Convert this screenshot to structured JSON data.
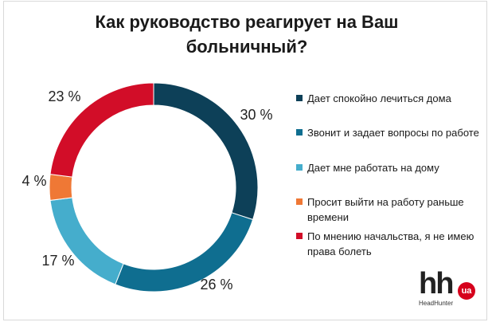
{
  "title": "Как руководство реагирует на Ваш больничный?",
  "logo": {
    "mark": "hh",
    "badge": "ua",
    "caption": "HeadHunter"
  },
  "chart_data": {
    "type": "pie",
    "variant": "donut",
    "title": "Как руководство реагирует на Ваш больничный?",
    "categories": [
      "Дает спокойно лечиться дома",
      "Звонит и задает вопросы по работе",
      "Дает мне работать на дому",
      "Просит выйти на работу раньше времени",
      "По мнению начальства, я не имею права болеть"
    ],
    "values": [
      30,
      26,
      17,
      4,
      23
    ],
    "value_labels": [
      "30 %",
      "26 %",
      "17 %",
      "4 %",
      "23 %"
    ],
    "colors": [
      "#0d4058",
      "#0f6e90",
      "#45adcc",
      "#ef7835",
      "#d20d28"
    ],
    "legend_lines": [
      [
        "Дает спокойно лечиться дома"
      ],
      [
        "Звонит и задает вопросы по работе"
      ],
      [
        "Дает мне работать на дому"
      ],
      [
        "Просит выйти на работу раньше",
        "времени"
      ],
      [
        "По мнению начальства, я не имею",
        "права болеть"
      ]
    ],
    "legend_position": "right"
  }
}
